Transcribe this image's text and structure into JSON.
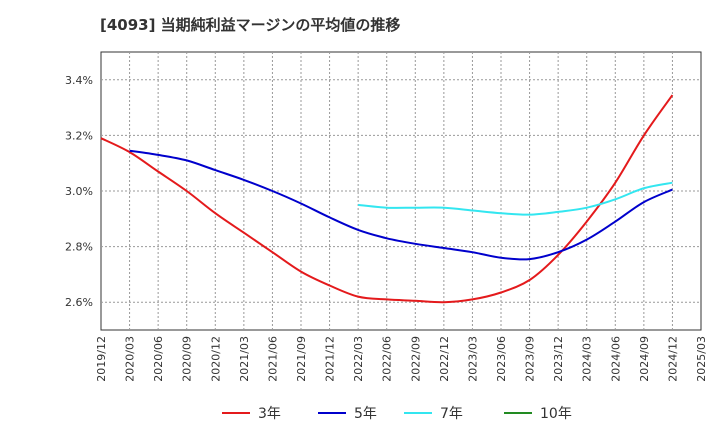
{
  "title": "[4093]  当期純利益マージンの平均値の推移",
  "chart_data": {
    "type": "line",
    "title": "[4093]  当期純利益マージンの平均値の推移",
    "xlabel": "",
    "ylabel": "",
    "x": [
      "2019/12",
      "2020/03",
      "2020/06",
      "2020/09",
      "2020/12",
      "2021/03",
      "2021/06",
      "2021/09",
      "2021/12",
      "2022/03",
      "2022/06",
      "2022/09",
      "2022/12",
      "2023/03",
      "2023/06",
      "2023/09",
      "2023/12",
      "2024/03",
      "2024/06",
      "2024/09",
      "2024/12",
      "2025/03"
    ],
    "ylim": [
      2.5,
      3.5
    ],
    "yticks": [
      2.6,
      2.8,
      3.0,
      3.2,
      3.4
    ],
    "ytick_labels": [
      "2.6%",
      "2.8%",
      "3.0%",
      "3.2%",
      "3.4%"
    ],
    "grid": true,
    "legend_position": "bottom",
    "series": [
      {
        "name": "3年",
        "color": "#e41a1c",
        "values": [
          3.19,
          3.14,
          3.07,
          3.0,
          2.92,
          2.85,
          2.78,
          2.71,
          2.66,
          2.62,
          2.61,
          2.605,
          2.6,
          2.61,
          2.635,
          2.68,
          2.77,
          2.89,
          3.03,
          3.2,
          3.345,
          null
        ]
      },
      {
        "name": "5年",
        "color": "#0000cc",
        "values": [
          null,
          3.145,
          3.13,
          3.11,
          3.075,
          3.04,
          3.0,
          2.955,
          2.905,
          2.86,
          2.83,
          2.81,
          2.795,
          2.78,
          2.76,
          2.755,
          2.78,
          2.825,
          2.89,
          2.96,
          3.005,
          null
        ]
      },
      {
        "name": "7年",
        "color": "#33e6f0",
        "values": [
          null,
          null,
          null,
          null,
          null,
          null,
          null,
          null,
          null,
          2.95,
          2.94,
          2.94,
          2.94,
          2.93,
          2.92,
          2.915,
          2.925,
          2.94,
          2.97,
          3.01,
          3.03,
          null
        ]
      },
      {
        "name": "10年",
        "color": "#228b22",
        "values": [
          null,
          null,
          null,
          null,
          null,
          null,
          null,
          null,
          null,
          null,
          null,
          null,
          null,
          null,
          null,
          null,
          null,
          null,
          null,
          null,
          null,
          null
        ]
      }
    ]
  }
}
